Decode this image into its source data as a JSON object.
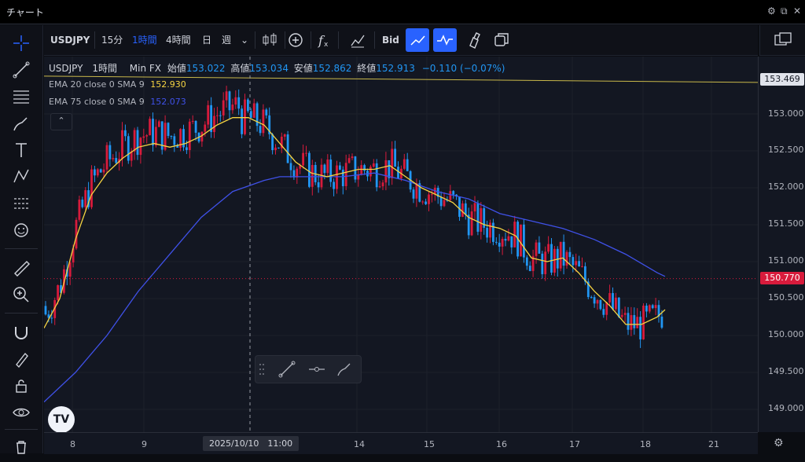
{
  "window": {
    "title": "チャート"
  },
  "toolbar": {
    "symbol": "USDJPY",
    "intervals": [
      "15分",
      "1時間",
      "4時間",
      "日",
      "週"
    ],
    "active_interval": "1時間",
    "bid_label": "Bid"
  },
  "legend": {
    "symbol": "USDJPY",
    "interval": "1時間",
    "source": "Min FX",
    "open_label": "始値",
    "open": "153.022",
    "high_label": "高値",
    "high": "153.034",
    "low_label": "安値",
    "low": "152.862",
    "close_label": "終値",
    "close": "152.913",
    "change": "−0.110 (−0.07%)"
  },
  "indicators": [
    {
      "label": "EMA 20 close 0 SMA 9",
      "value": "152.930",
      "color": "#f5d442"
    },
    {
      "label": "EMA 75 close 0 SMA 9",
      "value": "152.073",
      "color": "#3f51e8"
    }
  ],
  "price_axis": {
    "ticks": [
      "153.000",
      "152.500",
      "152.000",
      "151.500",
      "151.000",
      "150.500",
      "150.000",
      "149.500",
      "149.000"
    ],
    "last_price": "150.770",
    "line_price": "153.469"
  },
  "time_axis": {
    "ticks": [
      "8",
      "9",
      "14",
      "15",
      "16",
      "17",
      "18",
      "21"
    ],
    "crosshair_label": "2025/10/10　11:00"
  },
  "colors": {
    "up": "#d81b3c",
    "down": "#2196f3",
    "ema20": "#f5d442",
    "ema75": "#3f51e8",
    "accent": "#2962ff"
  },
  "chart_data": {
    "type": "candlestick",
    "ylim": [
      148.8,
      153.6
    ],
    "ema20_points": [
      [
        0,
        150.1
      ],
      [
        20,
        150.5
      ],
      [
        40,
        151.3
      ],
      [
        60,
        151.9
      ],
      [
        80,
        152.2
      ],
      [
        100,
        152.4
      ],
      [
        120,
        152.55
      ],
      [
        140,
        152.6
      ],
      [
        160,
        152.55
      ],
      [
        180,
        152.6
      ],
      [
        200,
        152.7
      ],
      [
        220,
        152.85
      ],
      [
        240,
        152.95
      ],
      [
        260,
        152.95
      ],
      [
        280,
        152.85
      ],
      [
        300,
        152.6
      ],
      [
        320,
        152.35
      ],
      [
        340,
        152.2
      ],
      [
        360,
        152.15
      ],
      [
        380,
        152.2
      ],
      [
        400,
        152.25
      ],
      [
        420,
        152.25
      ],
      [
        440,
        152.3
      ],
      [
        460,
        152.15
      ],
      [
        480,
        152.0
      ],
      [
        500,
        151.9
      ],
      [
        520,
        151.8
      ],
      [
        540,
        151.6
      ],
      [
        560,
        151.5
      ],
      [
        580,
        151.45
      ],
      [
        600,
        151.35
      ],
      [
        620,
        151.05
      ],
      [
        640,
        151.0
      ],
      [
        660,
        151.05
      ],
      [
        680,
        150.85
      ],
      [
        700,
        150.6
      ],
      [
        720,
        150.4
      ],
      [
        740,
        150.15
      ],
      [
        760,
        150.15
      ],
      [
        780,
        150.25
      ],
      [
        790,
        150.35
      ]
    ],
    "ema75_points": [
      [
        0,
        149.1
      ],
      [
        40,
        149.5
      ],
      [
        80,
        150.0
      ],
      [
        120,
        150.6
      ],
      [
        160,
        151.1
      ],
      [
        200,
        151.6
      ],
      [
        240,
        151.95
      ],
      [
        280,
        152.1
      ],
      [
        300,
        152.15
      ],
      [
        340,
        152.15
      ],
      [
        380,
        152.15
      ],
      [
        420,
        152.2
      ],
      [
        460,
        152.1
      ],
      [
        500,
        151.95
      ],
      [
        540,
        151.85
      ],
      [
        580,
        151.65
      ],
      [
        620,
        151.55
      ],
      [
        660,
        151.45
      ],
      [
        700,
        151.3
      ],
      [
        740,
        151.1
      ],
      [
        780,
        150.85
      ],
      [
        790,
        150.8
      ]
    ]
  }
}
